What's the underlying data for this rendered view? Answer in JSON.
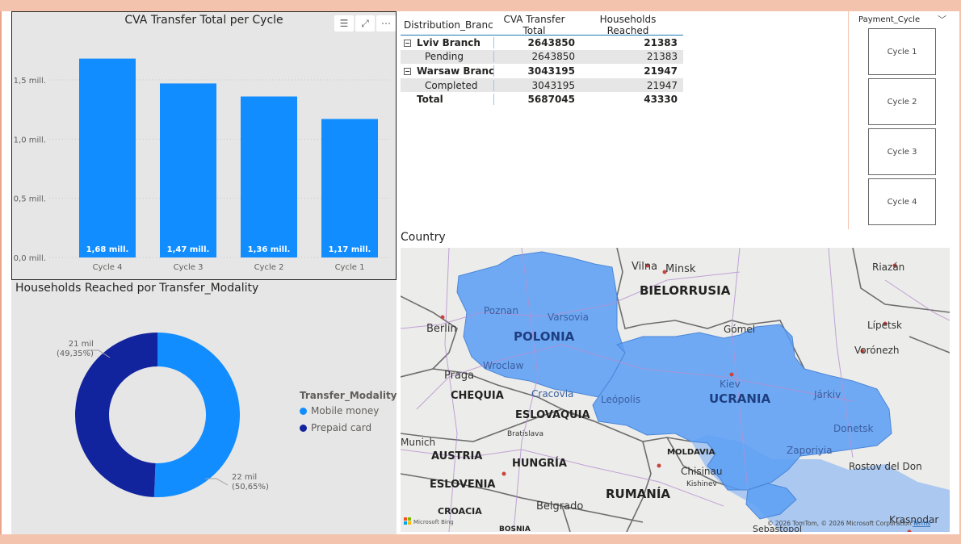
{
  "bar_chart": {
    "title": "CVA Transfer Total per Cycle",
    "icons": [
      "filter-icon",
      "focus-mode-icon",
      "more-options-icon"
    ]
  },
  "donut_chart": {
    "title": "Households Reached por Transfer_Modality",
    "legend_title": "Transfer_Modality",
    "labels": {
      "prepaid_value": "21 mil",
      "prepaid_pct": "(49,35%)",
      "mobile_value": "22 mil",
      "mobile_pct": "(50,65%)"
    }
  },
  "chart_data": [
    {
      "type": "bar",
      "title": "CVA Transfer Total per Cycle",
      "categories": [
        "Cycle 4",
        "Cycle 3",
        "Cycle 2",
        "Cycle 1"
      ],
      "values": [
        1680000,
        1470000,
        1360000,
        1170000
      ],
      "data_labels": [
        "1,68 mill.",
        "1,47 mill.",
        "1,36 mill.",
        "1,17 mill."
      ],
      "yticks": [
        0,
        500000,
        1000000,
        1500000
      ],
      "ytick_labels": [
        "0,0 mill.",
        "0,5 mill.",
        "1,0 mill.",
        "1,5 mill."
      ],
      "ylim": [
        0,
        1800000
      ],
      "grid": true,
      "color": "#118dff"
    },
    {
      "type": "pie",
      "title": "Households Reached por Transfer_Modality",
      "categories": [
        "Mobile money",
        "Prepaid card"
      ],
      "values": [
        50.65,
        49.35
      ],
      "colors": [
        "#118dff",
        "#12239e"
      ],
      "legend": "right"
    }
  ],
  "matrix": {
    "headers": [
      "Distribution_Branch",
      "CVA Transfer Total",
      "Households Reached"
    ],
    "rows": [
      {
        "label": "Lviv Branch",
        "cva": "2643850",
        "hh": "21383",
        "level": 0
      },
      {
        "label": "Pending",
        "cva": "2643850",
        "hh": "21383",
        "level": 1
      },
      {
        "label": "Warsaw Branch",
        "cva": "3043195",
        "hh": "21947",
        "level": 0
      },
      {
        "label": "Completed",
        "cva": "3043195",
        "hh": "21947",
        "level": 1
      },
      {
        "label": "Total",
        "cva": "5687045",
        "hh": "43330",
        "level": 2
      }
    ],
    "expander_symbol": "⊟"
  },
  "slicer": {
    "title": "Payment_Cycle",
    "items": [
      "Cycle 1",
      "Cycle 2",
      "Cycle 3",
      "Cycle 4"
    ]
  },
  "map": {
    "title": "Country",
    "fill_color": "#5b9ef5",
    "labels": {
      "vilna": "Vilna",
      "minsk": "Minsk",
      "riazan": "Riazán",
      "bielorrusia": "BIELORRUSIA",
      "poznan": "Poznan",
      "varsovia": "Varsovia",
      "berlin": "Berlín",
      "polonia": "POLONIA",
      "gomel": "Gómel",
      "lipetsk": "Lípetsk",
      "voronezh": "Vorónezh",
      "wroclaw": "Wroclaw",
      "praga": "Praga",
      "kiev": "Kiev",
      "chequia": "CHEQUIA",
      "cracovia": "Cracovia",
      "leopolis": "Leópolis",
      "ucrania": "UCRANIA",
      "jarkiv": "Járkiv",
      "eslovaquia": "ESLOVAQUIA",
      "bratislava": "Bratislava",
      "donetsk": "Donetsk",
      "munich": "Munich",
      "moldavia": "MOLDAVIA",
      "austria": "AUSTRIA",
      "hungria": "HUNGRÍA",
      "zaporiyia": "Zaporiyia",
      "chisinau": "Chisinau",
      "kishinev": "Kishinev",
      "rostov": "Rostov del Don",
      "eslovenia": "ESLOVENIA",
      "rumania": "RUMANÍA",
      "croacia": "CROACIA",
      "belgrado": "Belgrado",
      "krasnodar": "Krasnodar",
      "bosnia": "BOSNIA",
      "sebastopol": "Sebastopol"
    },
    "attribution": "© 2026 TomTom, © 2026 Microsoft Corporation",
    "terms": "Terms",
    "bing": "Microsoft Bing"
  }
}
